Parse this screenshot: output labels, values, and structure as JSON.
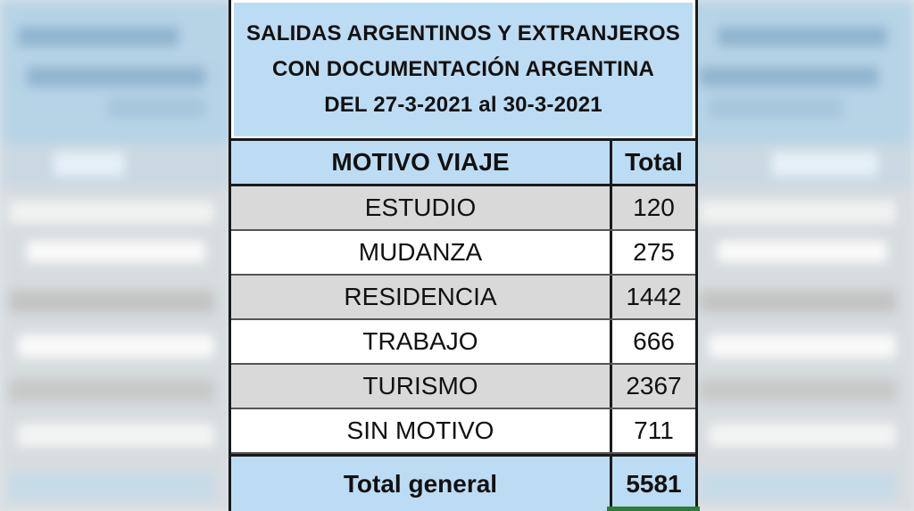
{
  "chart_data": {
    "type": "table",
    "title_lines": [
      "SALIDAS ARGENTINOS Y EXTRANJEROS",
      "CON DOCUMENTACIÓN ARGENTINA",
      "DEL 27-3-2021 al 30-3-2021"
    ],
    "columns": [
      "MOTIVO VIAJE",
      "Total"
    ],
    "rows": [
      {
        "motivo": "ESTUDIO",
        "total": "120"
      },
      {
        "motivo": "MUDANZA",
        "total": "275"
      },
      {
        "motivo": "RESIDENCIA",
        "total": "1442"
      },
      {
        "motivo": "TRABAJO",
        "total": "666"
      },
      {
        "motivo": "TURISMO",
        "total": "2367"
      },
      {
        "motivo": "SIN MOTIVO",
        "total": "711"
      }
    ],
    "footer": {
      "label": "Total general",
      "total": "5581"
    }
  },
  "colors": {
    "header_fill": "#bcdcf3",
    "shaded_row": "#d9d9d9",
    "plain_row": "#ffffff",
    "border": "#1a1a1a"
  }
}
